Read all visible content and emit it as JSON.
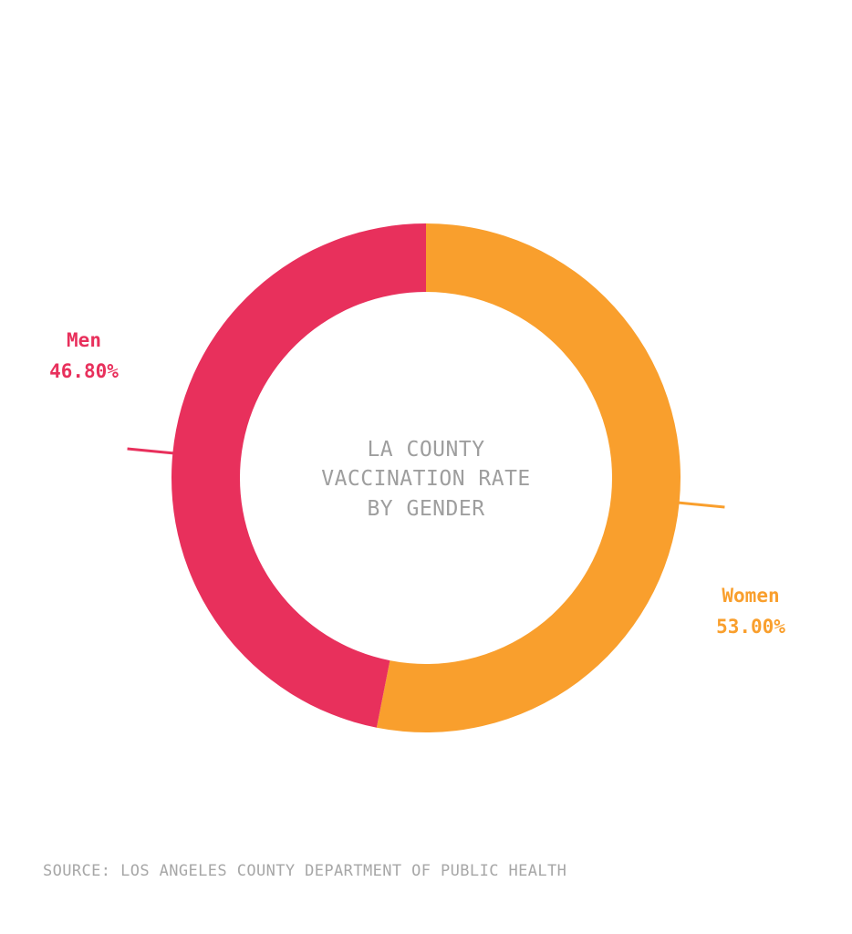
{
  "chart_data": {
    "type": "pie",
    "variant": "donut",
    "center_title": [
      "LA COUNTY",
      "VACCINATION RATE",
      "BY GENDER"
    ],
    "slices": [
      {
        "name": "Women",
        "value": 53.0,
        "label": "53.00%",
        "color": "#f99f2d"
      },
      {
        "name": "Men",
        "value": 46.8,
        "label": "46.80%",
        "color": "#e8305c"
      }
    ],
    "legend": "none"
  },
  "source": "SOURCE: LOS ANGELES COUNTY DEPARTMENT OF PUBLIC HEALTH"
}
